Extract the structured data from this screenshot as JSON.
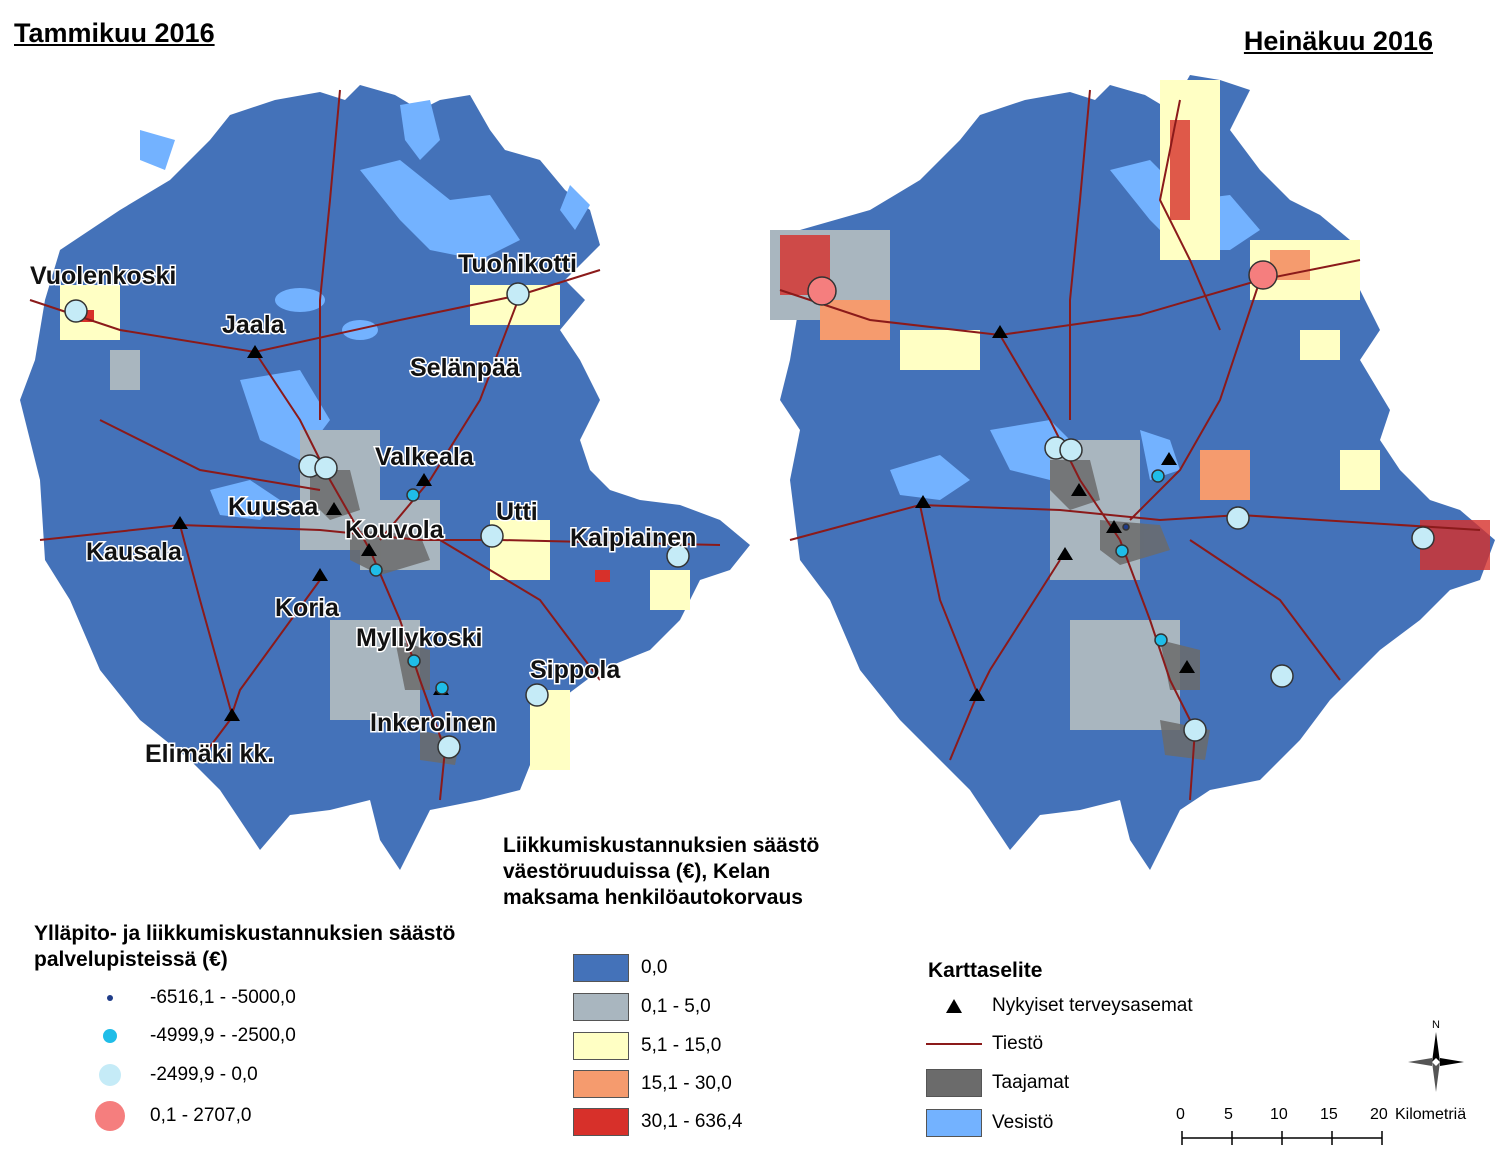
{
  "maps": {
    "left_title": "Tammikuu 2016",
    "right_title": "Heinäkuu 2016",
    "place_labels": [
      "Vuolenkoski",
      "Jaala",
      "Tuohikotti",
      "Selänpää",
      "Valkeala",
      "Kuusaa",
      "Kouvola",
      "Utti",
      "Kaipiainen",
      "Kausala",
      "Koria",
      "Myllykoski",
      "Sippola",
      "Inkeroinen",
      "Elimäki kk."
    ]
  },
  "service_legend": {
    "title": "Ylläpito- ja liikkumiskustannuksien säästö palvelupisteissä (€)",
    "items": [
      {
        "label": "-6516,1 - -5000,0",
        "color": "#1f3c88"
      },
      {
        "label": "-4999,9 - -2500,0",
        "color": "#1fbde8"
      },
      {
        "label": "-2499,9 - 0,0",
        "color": "#c5ebf7"
      },
      {
        "label": "0,1 - 2707,0",
        "color": "#f57e7e"
      }
    ]
  },
  "grid_legend": {
    "title": "Liikkumiskustannuksien säästö väestöruuduissa (€), Kelan maksama henkilöautokorvaus",
    "items": [
      {
        "label": "0,0",
        "color": "#4472b9"
      },
      {
        "label": "0,1 - 5,0",
        "color": "#a9b6bf"
      },
      {
        "label": "5,1 - 15,0",
        "color": "#ffffc4"
      },
      {
        "label": "15,1 - 30,0",
        "color": "#f59b6e"
      },
      {
        "label": "30,1 - 636,4",
        "color": "#d7302a"
      }
    ]
  },
  "map_legend": {
    "title": "Karttaselite",
    "items": [
      {
        "label": "Nykyiset terveysasemat",
        "icon": "triangle-icon"
      },
      {
        "label": "Tiestö",
        "icon": "road-line-icon"
      },
      {
        "label": "Taajamat",
        "icon": "urban-area-swatch",
        "color": "#6b6b6b"
      },
      {
        "label": "Vesistö",
        "icon": "water-swatch",
        "color": "#73b2ff"
      }
    ]
  },
  "scale_bar": {
    "ticks": [
      "0",
      "5",
      "10",
      "15",
      "20"
    ],
    "unit": "Kilometriä"
  },
  "north_arrow_label": "N",
  "colors": {
    "road": "#8b1a1a",
    "lake": "#73b2ff",
    "urban": "#6b6b6b"
  }
}
